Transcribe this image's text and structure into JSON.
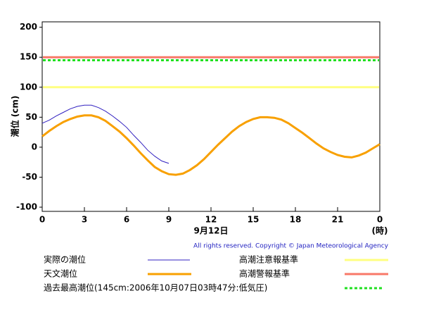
{
  "chart_data": {
    "type": "line",
    "ylabel": "潮位 (cm)",
    "xlabel": "9月12日",
    "xunit": "(時)",
    "credit": "All rights reserved. Copyright © Japan Meteorological Agency",
    "xlim": [
      0,
      24
    ],
    "ylim": [
      -107,
      209
    ],
    "xticks": [
      0,
      3,
      6,
      9,
      12,
      15,
      18,
      21,
      {
        "value": 24,
        "label": "0"
      }
    ],
    "yticks": [
      -100,
      -50,
      0,
      50,
      100,
      150,
      200
    ],
    "x": [
      0,
      0.5,
      1,
      1.5,
      2,
      2.5,
      3,
      3.5,
      4,
      4.5,
      5,
      5.5,
      6,
      6.5,
      7,
      7.5,
      8,
      8.5,
      9,
      9.5,
      10,
      10.5,
      11,
      11.5,
      12,
      12.5,
      13,
      13.5,
      14,
      14.5,
      15,
      15.5,
      16,
      16.5,
      17,
      17.5,
      18,
      18.5,
      19,
      19.5,
      20,
      20.5,
      21,
      21.5,
      22,
      22.5,
      23,
      23.5,
      24
    ],
    "series": [
      {
        "name": "実際の潮位",
        "color": "#3020c0",
        "width": 1,
        "values": [
          40,
          45,
          52,
          58,
          64,
          68,
          70,
          70,
          66,
          60,
          52,
          43,
          33,
          20,
          8,
          -5,
          -15,
          -23,
          -27,
          null,
          null,
          null,
          null,
          null,
          null,
          null,
          null,
          null,
          null,
          null,
          null,
          null,
          null,
          null,
          null,
          null,
          null,
          null,
          null,
          null,
          null,
          null,
          null,
          null,
          null,
          null,
          null,
          null,
          null
        ]
      },
      {
        "name": "天文潮位",
        "color": "#f8a000",
        "width": 3,
        "values": [
          18,
          27,
          35,
          42,
          47,
          51,
          53,
          53,
          50,
          44,
          35,
          26,
          15,
          3,
          -10,
          -22,
          -33,
          -40,
          -45,
          -46,
          -44,
          -38,
          -30,
          -20,
          -8,
          4,
          15,
          26,
          35,
          42,
          47,
          50,
          50,
          49,
          46,
          40,
          32,
          24,
          15,
          6,
          -2,
          -8,
          -13,
          -16,
          -17,
          -14,
          -9,
          -2,
          5
        ]
      }
    ],
    "reference_lines": [
      {
        "name": "高潮注意報基準",
        "value": 100,
        "color": "#ffff80",
        "dash": false
      },
      {
        "name": "高潮警報基準",
        "value": 150,
        "color": "#f87868",
        "dash": false
      },
      {
        "name": "過去最高潮位(145cm:2006年10月07日03時47分:低気圧)",
        "value": 145,
        "color": "#20e020",
        "dash": true
      }
    ]
  }
}
